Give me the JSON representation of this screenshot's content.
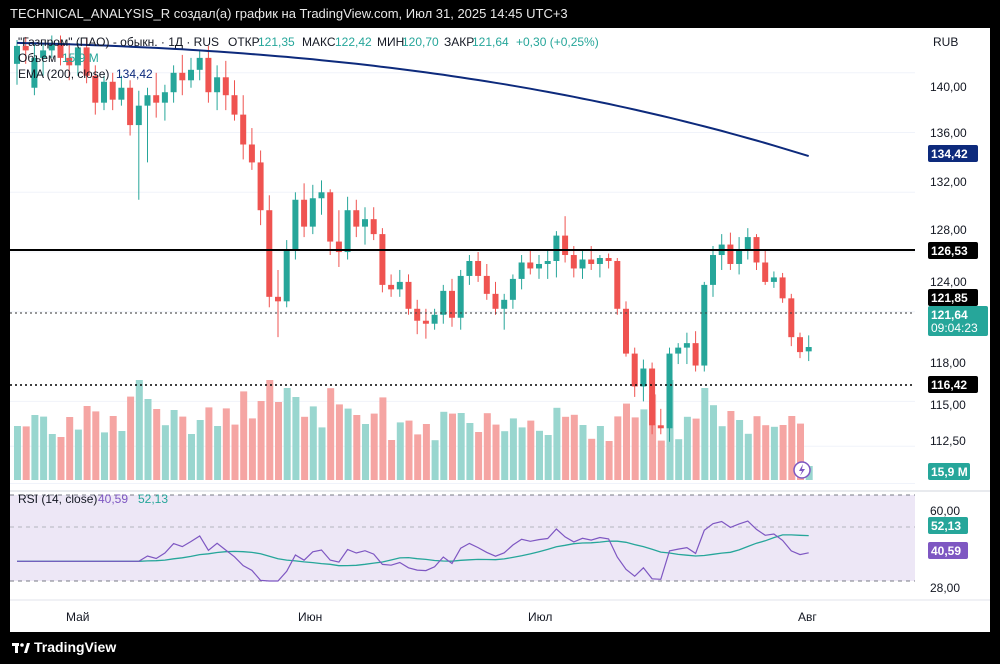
{
  "header": {
    "attribution": "TECHNICAL_ANALYSIS_R создал(а) график на TradingView.com, Июл 31, 2025 14:45 UTC+3"
  },
  "legend": {
    "symbol": "\"Газпром\" (ПАО) - обыкн. · 1Д · RUS",
    "open_label": "ОТКР",
    "open": "121,35",
    "high_label": "МАКС",
    "high": "122,42",
    "low_label": "МИН",
    "low": "120,70",
    "close_label": "ЗАКР",
    "close": "121,64",
    "change": "+0,30 (+0,25%)",
    "volume_label": "Объем",
    "volume": "15,9 M",
    "ema_label": "EMA (200, close)",
    "ema": "134,42",
    "rsi_label": "RSI (14, close)",
    "rsi": "40,59",
    "rsi_ma": "52,13"
  },
  "currency": "RUB",
  "price_ticks": [
    "140,00",
    "136,00",
    "132,00",
    "128,00",
    "124,00",
    "118,00",
    "115,00",
    "112,50"
  ],
  "rsi_ticks": [
    "60,00",
    "28,00"
  ],
  "time_labels": [
    "Май",
    "Июн",
    "Июл",
    "Авг"
  ],
  "badges": {
    "ema": "134,42",
    "level_high": "126,53",
    "high_line": "121,85",
    "last": "121,64",
    "countdown": "09:04:23",
    "level_low": "116,42",
    "volume": "15,9 M",
    "rsi_ma": "52,13",
    "rsi": "40,59"
  },
  "footer": {
    "brand": "TradingView"
  },
  "colors": {
    "up": "#26a69a",
    "down": "#ef5350",
    "ema": "#0d2a7c",
    "rsi": "#7e57c2",
    "rsi_ma": "#26a69a",
    "rsi_band": "#ede7f6",
    "vol_up": "#99d6cf",
    "vol_down": "#f5a5a3"
  },
  "chart_data": {
    "type": "candlestick",
    "symbol": "\"Газпром\" (ПАО) - обыкн.",
    "interval": "1Д",
    "currency": "RUB",
    "x_axis": [
      "Май",
      "Июн",
      "Июл",
      "Авг"
    ],
    "price_range": [
      112,
      143
    ],
    "horizontal_levels": [
      126.53,
      116.42
    ],
    "ohlc": [
      [
        140.6,
        142.2,
        139.2,
        141.8
      ],
      [
        141.8,
        142.4,
        140.6,
        141.5
      ],
      [
        139.0,
        142.0,
        138.5,
        141.0
      ],
      [
        141.0,
        142.0,
        139.8,
        141.5
      ],
      [
        141.5,
        142.5,
        141.0,
        142.0
      ],
      [
        142.0,
        142.5,
        140.5,
        141.0
      ],
      [
        141.0,
        142.0,
        139.5,
        140.5
      ],
      [
        140.5,
        142.0,
        139.8,
        141.7
      ],
      [
        141.7,
        142.3,
        139.3,
        139.8
      ],
      [
        139.8,
        140.5,
        137.2,
        138.0
      ],
      [
        138.0,
        139.8,
        137.5,
        139.4
      ],
      [
        139.4,
        140.0,
        137.5,
        138.2
      ],
      [
        138.2,
        139.8,
        137.8,
        139.0
      ],
      [
        139.0,
        139.5,
        135.8,
        136.5
      ],
      [
        136.5,
        138.8,
        131.5,
        137.8
      ],
      [
        137.8,
        139.0,
        134.0,
        138.5
      ],
      [
        138.5,
        140.0,
        137.0,
        138.0
      ],
      [
        138.0,
        139.2,
        136.8,
        138.7
      ],
      [
        138.7,
        140.5,
        138.0,
        140.0
      ],
      [
        140.0,
        141.2,
        138.5,
        139.5
      ],
      [
        139.5,
        141.0,
        139.0,
        140.2
      ],
      [
        140.2,
        141.5,
        139.5,
        141.0
      ],
      [
        141.0,
        141.8,
        138.0,
        138.7
      ],
      [
        138.7,
        140.5,
        137.5,
        139.7
      ],
      [
        139.7,
        140.8,
        137.5,
        138.5
      ],
      [
        138.5,
        139.5,
        136.8,
        137.2
      ],
      [
        137.2,
        138.5,
        134.2,
        135.2
      ],
      [
        135.2,
        136.3,
        133.5,
        134.0
      ],
      [
        134.0,
        134.8,
        129.8,
        130.8
      ],
      [
        130.8,
        131.8,
        124.3,
        125.0
      ],
      [
        125.0,
        126.8,
        122.3,
        124.7
      ],
      [
        124.7,
        128.8,
        124.3,
        128.2
      ],
      [
        128.2,
        132.0,
        127.5,
        131.5
      ],
      [
        131.5,
        132.6,
        129.0,
        129.7
      ],
      [
        129.7,
        132.5,
        129.2,
        131.6
      ],
      [
        131.6,
        132.8,
        130.5,
        132.0
      ],
      [
        132.0,
        132.2,
        127.8,
        128.7
      ],
      [
        128.7,
        130.8,
        127.0,
        128.0
      ],
      [
        128.0,
        131.7,
        127.5,
        130.8
      ],
      [
        130.8,
        131.5,
        129.0,
        129.7
      ],
      [
        129.7,
        131.0,
        128.5,
        130.2
      ],
      [
        130.2,
        131.0,
        128.8,
        129.2
      ],
      [
        129.2,
        129.6,
        125.3,
        125.8
      ],
      [
        125.8,
        126.5,
        125.0,
        125.5
      ],
      [
        125.5,
        126.8,
        125.0,
        126.0
      ],
      [
        126.0,
        126.5,
        123.8,
        124.2
      ],
      [
        124.2,
        124.8,
        122.5,
        123.4
      ],
      [
        123.4,
        124.2,
        122.2,
        123.2
      ],
      [
        123.2,
        124.2,
        122.8,
        123.8
      ],
      [
        123.8,
        125.8,
        123.2,
        125.4
      ],
      [
        125.4,
        126.2,
        123.0,
        123.6
      ],
      [
        123.6,
        126.8,
        122.8,
        126.4
      ],
      [
        126.4,
        127.8,
        125.8,
        127.4
      ],
      [
        127.4,
        128.0,
        126.0,
        126.4
      ],
      [
        126.4,
        127.2,
        124.8,
        125.2
      ],
      [
        125.2,
        126.0,
        123.8,
        124.2
      ],
      [
        124.2,
        125.2,
        122.8,
        124.8
      ],
      [
        124.8,
        126.5,
        124.2,
        126.2
      ],
      [
        126.2,
        127.8,
        125.5,
        127.3
      ],
      [
        127.3,
        128.2,
        126.5,
        126.9
      ],
      [
        126.9,
        127.8,
        126.2,
        127.2
      ],
      [
        127.2,
        128.2,
        126.2,
        127.4
      ],
      [
        127.4,
        129.4,
        126.3,
        129.1
      ],
      [
        129.1,
        130.4,
        127.3,
        127.8
      ],
      [
        127.8,
        128.4,
        126.3,
        126.9
      ],
      [
        126.9,
        128.2,
        126.2,
        127.5
      ],
      [
        127.5,
        128.4,
        126.8,
        127.2
      ],
      [
        127.2,
        127.8,
        126.3,
        127.6
      ],
      [
        127.6,
        127.9,
        126.9,
        127.4
      ],
      [
        127.4,
        127.6,
        123.8,
        124.2
      ],
      [
        124.2,
        124.7,
        121.0,
        121.2
      ],
      [
        121.2,
        121.6,
        118.3,
        119.0
      ],
      [
        119.0,
        120.8,
        118.0,
        120.2
      ],
      [
        120.2,
        120.6,
        115.8,
        116.4
      ],
      [
        116.4,
        117.5,
        115.8,
        116.2
      ],
      [
        116.2,
        121.6,
        115.3,
        121.2
      ],
      [
        121.2,
        121.9,
        120.5,
        121.6
      ],
      [
        121.6,
        122.6,
        120.5,
        121.9
      ],
      [
        121.9,
        122.7,
        120.0,
        120.4
      ],
      [
        120.4,
        126.0,
        120.0,
        125.8
      ],
      [
        125.8,
        128.4,
        125.0,
        127.8
      ],
      [
        127.8,
        129.2,
        126.8,
        128.5
      ],
      [
        128.5,
        129.3,
        126.8,
        127.2
      ],
      [
        127.2,
        129.0,
        126.5,
        128.2
      ],
      [
        128.2,
        129.6,
        127.5,
        129.0
      ],
      [
        129.0,
        129.2,
        126.8,
        127.3
      ],
      [
        127.3,
        128.2,
        125.8,
        126.0
      ],
      [
        126.0,
        126.7,
        125.6,
        126.3
      ],
      [
        126.3,
        126.6,
        124.6,
        124.9
      ],
      [
        124.9,
        125.2,
        121.7,
        122.3
      ],
      [
        122.3,
        122.6,
        120.9,
        121.3
      ],
      [
        121.35,
        122.42,
        120.7,
        121.64
      ]
    ],
    "volume_unit": "M",
    "volume_last": 15.9,
    "ema200": {
      "start": 142.0,
      "end": 134.42
    },
    "rsi": {
      "last": 40.59,
      "ma_last": 52.13,
      "band": [
        30,
        70
      ],
      "range": [
        26,
        74
      ]
    }
  }
}
